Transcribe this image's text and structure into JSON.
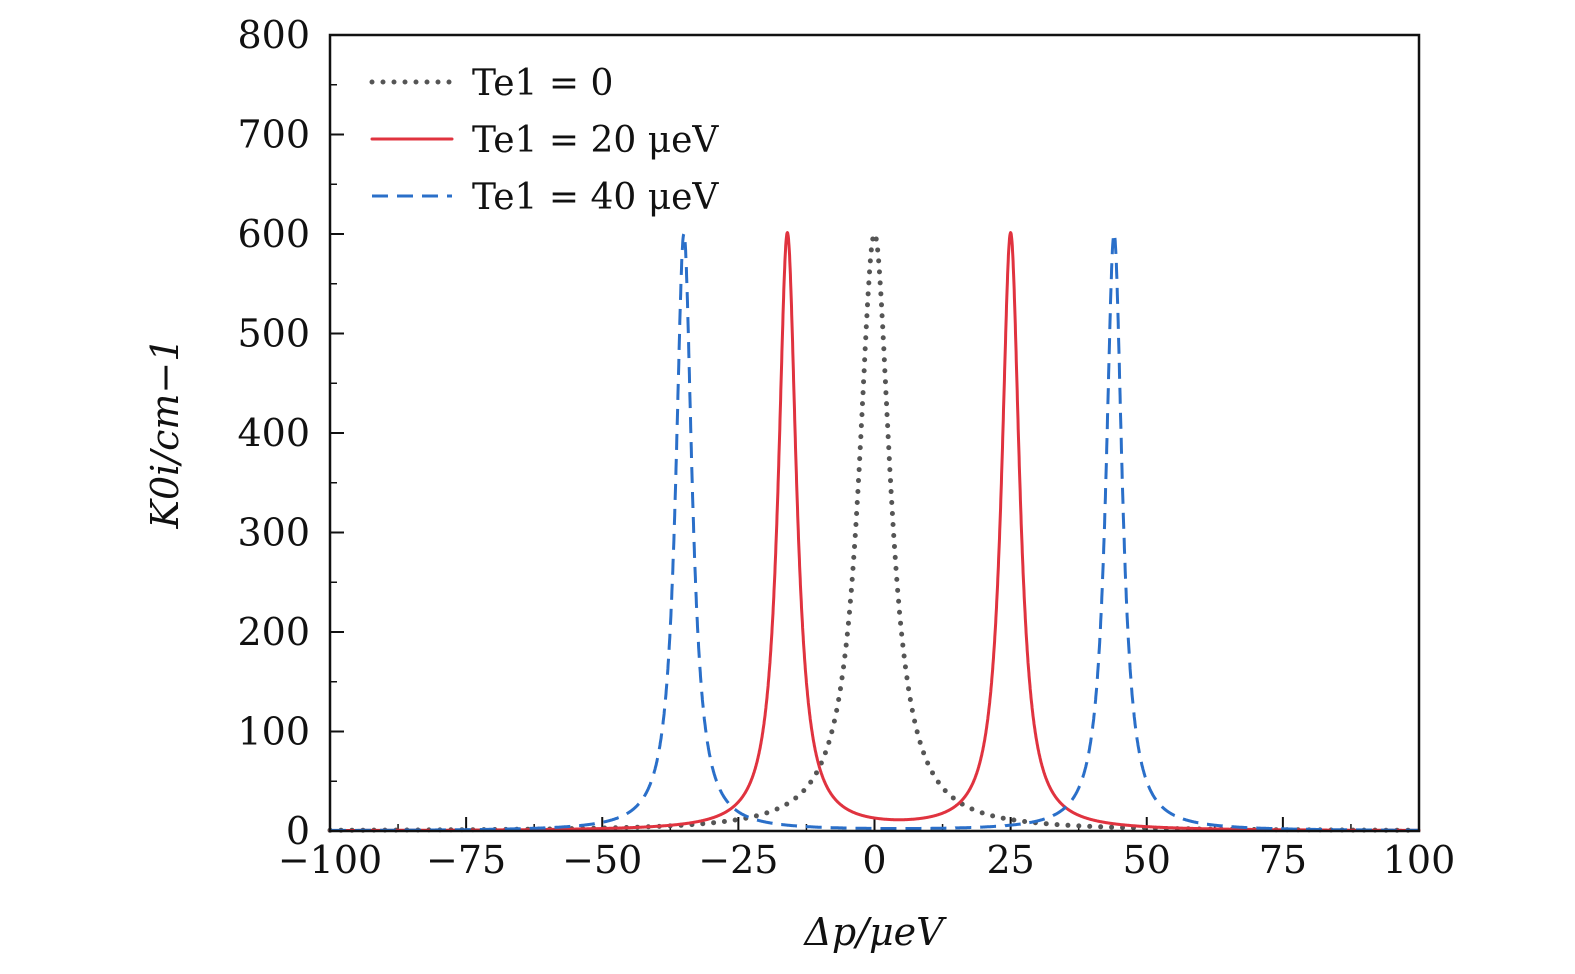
{
  "chart_data": {
    "type": "line",
    "title": "",
    "xlabel": "Δp/μeV",
    "ylabel": "K0i/cm−1",
    "xlim": [
      -100,
      100
    ],
    "ylim": [
      0,
      800
    ],
    "xticks": [
      -100,
      -75,
      -50,
      -25,
      0,
      25,
      50,
      75,
      100
    ],
    "xtick_labels": [
      "−100",
      "−75",
      "−50",
      "−25",
      "0",
      "25",
      "50",
      "75",
      "100"
    ],
    "yticks": [
      0,
      100,
      200,
      300,
      400,
      500,
      600,
      700,
      800
    ],
    "ytick_labels": [
      "0",
      "100",
      "200",
      "300",
      "400",
      "500",
      "600",
      "700",
      "800"
    ],
    "legend_position": "top-left",
    "grid": false,
    "series": [
      {
        "name": "Te1 = 0",
        "color": "#555555",
        "style": "dotted",
        "peaks": [
          {
            "center": 0,
            "height": 600,
            "half_width": 3.5
          }
        ]
      },
      {
        "name": "Te1 = 20 μeV",
        "color": "#e0333f",
        "style": "solid",
        "peaks": [
          {
            "center": -16,
            "height": 600,
            "half_width": 2.0
          },
          {
            "center": 25,
            "height": 600,
            "half_width": 2.0
          }
        ]
      },
      {
        "name": "Te1 = 40 μeV",
        "color": "#2a6fc9",
        "style": "dashed",
        "peaks": [
          {
            "center": -35,
            "height": 600,
            "half_width": 1.8
          },
          {
            "center": 44,
            "height": 600,
            "half_width": 1.8
          }
        ]
      }
    ]
  }
}
